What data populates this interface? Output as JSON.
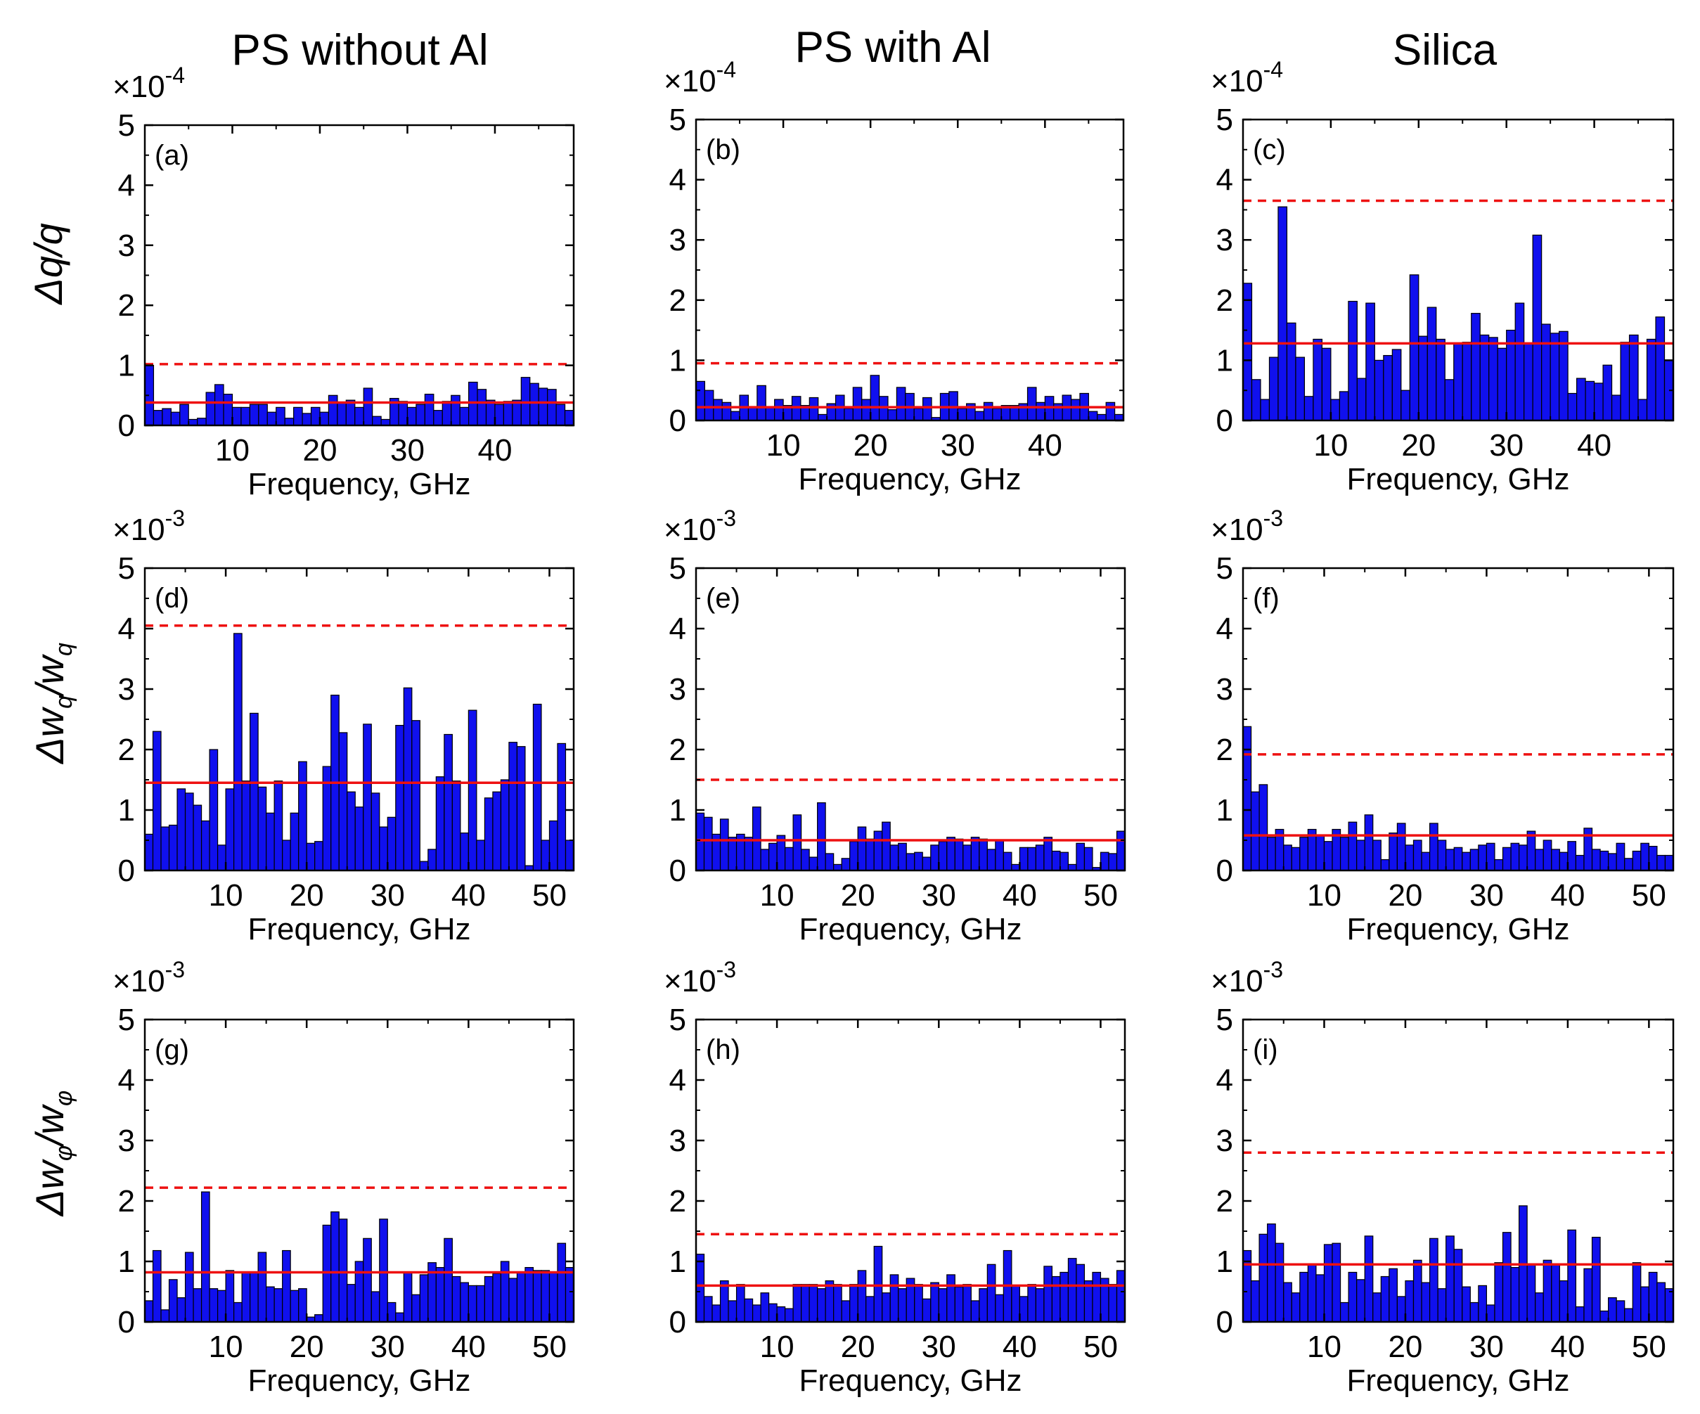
{
  "figure": {
    "column_titles": [
      "PS without Al",
      "PS with Al",
      "Silica"
    ],
    "row_ylabels": [
      {
        "main": "Δq/q",
        "sub": ""
      },
      {
        "main": "Δw",
        "sub": "q",
        "main2": "/w",
        "sub2": "q"
      },
      {
        "main": "Δw",
        "sub": "φ",
        "main2": "/w",
        "sub2": "φ"
      }
    ],
    "xlabel": "Frequency, GHz"
  },
  "colors": {
    "bar": "#1010ee",
    "bar_edge": "#000000",
    "mean_line": "#ee1111",
    "threshold_line": "#ee1111"
  },
  "chart_data": [
    {
      "id": "a",
      "type": "bar",
      "panel_label": "(a)",
      "multiplier_base": "×10",
      "multiplier_exp": "-4",
      "xlabel": "Frequency, GHz",
      "ylim": [
        0,
        5
      ],
      "yticks": [
        "0",
        "1",
        "2",
        "3",
        "4",
        "5"
      ],
      "xlim": [
        0,
        49
      ],
      "xticks": [
        10,
        20,
        30,
        40
      ],
      "mean": 0.38,
      "threshold": 1.02,
      "values": [
        1.0,
        0.25,
        0.28,
        0.22,
        0.35,
        0.1,
        0.12,
        0.55,
        0.68,
        0.52,
        0.3,
        0.3,
        0.35,
        0.35,
        0.22,
        0.3,
        0.12,
        0.3,
        0.2,
        0.3,
        0.22,
        0.5,
        0.38,
        0.42,
        0.3,
        0.62,
        0.15,
        0.1,
        0.45,
        0.4,
        0.3,
        0.35,
        0.52,
        0.25,
        0.4,
        0.5,
        0.3,
        0.72,
        0.6,
        0.42,
        0.35,
        0.4,
        0.42,
        0.8,
        0.7,
        0.62,
        0.6,
        0.35,
        0.25
      ]
    },
    {
      "id": "b",
      "type": "bar",
      "panel_label": "(b)",
      "multiplier_base": "×10",
      "multiplier_exp": "-4",
      "xlabel": "Frequency, GHz",
      "ylim": [
        0,
        5
      ],
      "yticks": [
        "0",
        "1",
        "2",
        "3",
        "4",
        "5"
      ],
      "xlim": [
        0,
        49
      ],
      "xticks": [
        10,
        20,
        30,
        40
      ],
      "mean": 0.22,
      "threshold": 0.95,
      "values": [
        0.65,
        0.5,
        0.35,
        0.3,
        0.15,
        0.42,
        0.22,
        0.58,
        0.22,
        0.35,
        0.25,
        0.4,
        0.25,
        0.38,
        0.1,
        0.28,
        0.42,
        0.2,
        0.55,
        0.35,
        0.75,
        0.4,
        0.18,
        0.55,
        0.45,
        0.2,
        0.38,
        0.05,
        0.45,
        0.48,
        0.2,
        0.28,
        0.15,
        0.3,
        0.2,
        0.25,
        0.25,
        0.28,
        0.55,
        0.3,
        0.4,
        0.28,
        0.42,
        0.35,
        0.45,
        0.15,
        0.1,
        0.3,
        0.1
      ]
    },
    {
      "id": "c",
      "type": "bar",
      "panel_label": "(c)",
      "multiplier_base": "×10",
      "multiplier_exp": "-4",
      "xlabel": "Frequency, GHz",
      "ylim": [
        0,
        5
      ],
      "yticks": [
        "0",
        "1",
        "2",
        "3",
        "4",
        "5"
      ],
      "xlim": [
        0,
        49
      ],
      "xticks": [
        10,
        20,
        30,
        40
      ],
      "mean": 1.28,
      "threshold": 3.65,
      "values": [
        2.28,
        0.68,
        0.35,
        1.05,
        3.55,
        1.62,
        1.05,
        0.4,
        1.35,
        1.2,
        0.35,
        0.48,
        1.98,
        0.7,
        1.95,
        1.0,
        1.08,
        1.18,
        0.5,
        2.42,
        1.4,
        1.88,
        1.35,
        0.68,
        1.28,
        1.3,
        1.78,
        1.42,
        1.38,
        1.2,
        1.5,
        1.95,
        1.28,
        3.08,
        1.6,
        1.45,
        1.48,
        0.45,
        0.7,
        0.65,
        0.62,
        0.92,
        0.42,
        1.3,
        1.42,
        0.35,
        1.35,
        1.72,
        1.0
      ]
    },
    {
      "id": "d",
      "type": "bar",
      "panel_label": "(d)",
      "multiplier_base": "×10",
      "multiplier_exp": "-3",
      "xlabel": "Frequency, GHz",
      "ylim": [
        0,
        5
      ],
      "yticks": [
        "0",
        "1",
        "2",
        "3",
        "4",
        "5"
      ],
      "xlim": [
        0,
        53
      ],
      "xticks": [
        10,
        20,
        30,
        40,
        50
      ],
      "mean": 1.45,
      "threshold": 4.05,
      "values": [
        0.6,
        2.3,
        0.72,
        0.75,
        1.35,
        1.28,
        1.08,
        0.82,
        2.0,
        0.42,
        1.35,
        3.92,
        1.48,
        2.6,
        1.38,
        0.95,
        1.48,
        0.5,
        0.95,
        1.8,
        0.45,
        0.48,
        1.72,
        2.9,
        2.28,
        1.3,
        1.05,
        2.42,
        1.28,
        0.72,
        0.88,
        2.4,
        3.02,
        2.48,
        0.15,
        0.35,
        1.55,
        2.25,
        1.48,
        0.62,
        2.65,
        0.5,
        1.2,
        1.3,
        1.5,
        2.12,
        2.05,
        0.08,
        2.75,
        0.5,
        0.82,
        2.1,
        0.5
      ]
    },
    {
      "id": "e",
      "type": "bar",
      "panel_label": "(e)",
      "multiplier_base": "×10",
      "multiplier_exp": "-3",
      "xlabel": "Frequency, GHz",
      "ylim": [
        0,
        5
      ],
      "yticks": [
        "0",
        "1",
        "2",
        "3",
        "4",
        "5"
      ],
      "xlim": [
        0,
        53
      ],
      "xticks": [
        10,
        20,
        30,
        40,
        50
      ],
      "mean": 0.5,
      "threshold": 1.5,
      "values": [
        0.95,
        0.88,
        0.6,
        0.85,
        0.55,
        0.6,
        0.55,
        1.05,
        0.35,
        0.45,
        0.58,
        0.38,
        0.92,
        0.35,
        0.22,
        1.12,
        0.28,
        0.1,
        0.2,
        0.48,
        0.72,
        0.52,
        0.65,
        0.8,
        0.42,
        0.45,
        0.28,
        0.3,
        0.22,
        0.42,
        0.48,
        0.55,
        0.52,
        0.42,
        0.55,
        0.52,
        0.35,
        0.5,
        0.3,
        0.1,
        0.38,
        0.38,
        0.42,
        0.55,
        0.32,
        0.3,
        0.1,
        0.45,
        0.38,
        0.05,
        0.3,
        0.28,
        0.65
      ]
    },
    {
      "id": "f",
      "type": "bar",
      "panel_label": "(f)",
      "multiplier_base": "×10",
      "multiplier_exp": "-3",
      "xlabel": "Frequency, GHz",
      "ylim": [
        0,
        5
      ],
      "yticks": [
        "0",
        "1",
        "2",
        "3",
        "4",
        "5"
      ],
      "xlim": [
        0,
        53
      ],
      "xticks": [
        10,
        20,
        30,
        40,
        50
      ],
      "mean": 0.58,
      "threshold": 1.92,
      "values": [
        2.38,
        1.3,
        1.42,
        0.55,
        0.68,
        0.42,
        0.38,
        0.55,
        0.68,
        0.58,
        0.48,
        0.68,
        0.55,
        0.8,
        0.5,
        0.92,
        0.5,
        0.18,
        0.62,
        0.78,
        0.42,
        0.5,
        0.3,
        0.78,
        0.5,
        0.35,
        0.38,
        0.3,
        0.35,
        0.42,
        0.45,
        0.18,
        0.38,
        0.45,
        0.42,
        0.65,
        0.35,
        0.5,
        0.35,
        0.3,
        0.48,
        0.25,
        0.7,
        0.35,
        0.32,
        0.28,
        0.45,
        0.2,
        0.32,
        0.45,
        0.4,
        0.25,
        0.25
      ]
    },
    {
      "id": "g",
      "type": "bar",
      "panel_label": "(g)",
      "multiplier_base": "×10",
      "multiplier_exp": "-3",
      "xlabel": "Frequency, GHz",
      "ylim": [
        0,
        5
      ],
      "yticks": [
        "0",
        "1",
        "2",
        "3",
        "4",
        "5"
      ],
      "xlim": [
        0,
        53
      ],
      "xticks": [
        10,
        20,
        30,
        40,
        50
      ],
      "mean": 0.82,
      "threshold": 2.22,
      "values": [
        0.35,
        1.18,
        0.2,
        0.7,
        0.4,
        1.15,
        0.55,
        2.15,
        0.55,
        0.52,
        0.85,
        0.32,
        0.82,
        0.82,
        1.15,
        0.58,
        0.55,
        1.18,
        0.52,
        0.55,
        0.08,
        0.12,
        1.6,
        1.82,
        1.7,
        0.62,
        1.0,
        1.38,
        0.5,
        1.7,
        0.32,
        0.15,
        0.82,
        0.45,
        0.78,
        0.98,
        0.9,
        1.38,
        0.75,
        0.65,
        0.6,
        0.6,
        0.75,
        0.8,
        1.0,
        0.72,
        0.82,
        0.9,
        0.85,
        0.85,
        0.82,
        1.3,
        0.9
      ]
    },
    {
      "id": "h",
      "type": "bar",
      "panel_label": "(h)",
      "multiplier_base": "×10",
      "multiplier_exp": "-3",
      "xlabel": "Frequency, GHz",
      "ylim": [
        0,
        5
      ],
      "yticks": [
        "0",
        "1",
        "2",
        "3",
        "4",
        "5"
      ],
      "xlim": [
        0,
        53
      ],
      "xticks": [
        10,
        20,
        30,
        40,
        50
      ],
      "mean": 0.6,
      "threshold": 1.45,
      "values": [
        1.12,
        0.42,
        0.28,
        0.68,
        0.35,
        0.62,
        0.38,
        0.28,
        0.48,
        0.3,
        0.25,
        0.22,
        0.62,
        0.62,
        0.62,
        0.55,
        0.68,
        0.62,
        0.35,
        0.62,
        0.85,
        0.42,
        1.25,
        0.48,
        0.78,
        0.55,
        0.72,
        0.62,
        0.38,
        0.65,
        0.55,
        0.78,
        0.58,
        0.62,
        0.35,
        0.55,
        0.95,
        0.45,
        1.18,
        0.6,
        0.42,
        0.62,
        0.55,
        0.92,
        0.75,
        0.82,
        1.05,
        0.95,
        0.68,
        0.82,
        0.72,
        0.62,
        0.85
      ]
    },
    {
      "id": "i",
      "type": "bar",
      "panel_label": "(i)",
      "multiplier_base": "×10",
      "multiplier_exp": "-3",
      "xlabel": "Frequency, GHz",
      "ylim": [
        0,
        5
      ],
      "yticks": [
        "0",
        "1",
        "2",
        "3",
        "4",
        "5"
      ],
      "xlim": [
        0,
        53
      ],
      "xticks": [
        10,
        20,
        30,
        40,
        50
      ],
      "mean": 0.95,
      "threshold": 2.8,
      "values": [
        1.18,
        0.68,
        1.45,
        1.62,
        1.3,
        0.65,
        0.48,
        0.82,
        0.95,
        0.78,
        1.28,
        1.3,
        0.32,
        0.82,
        0.7,
        1.42,
        0.48,
        0.75,
        0.88,
        0.42,
        0.68,
        1.02,
        0.65,
        1.38,
        0.55,
        1.42,
        1.2,
        0.58,
        0.32,
        0.6,
        0.28,
        0.98,
        1.48,
        0.9,
        1.92,
        0.95,
        0.48,
        1.02,
        0.95,
        0.68,
        1.52,
        0.25,
        0.88,
        1.4,
        0.18,
        0.4,
        0.35,
        0.22,
        0.98,
        0.58,
        0.82,
        0.65,
        0.55
      ]
    }
  ]
}
